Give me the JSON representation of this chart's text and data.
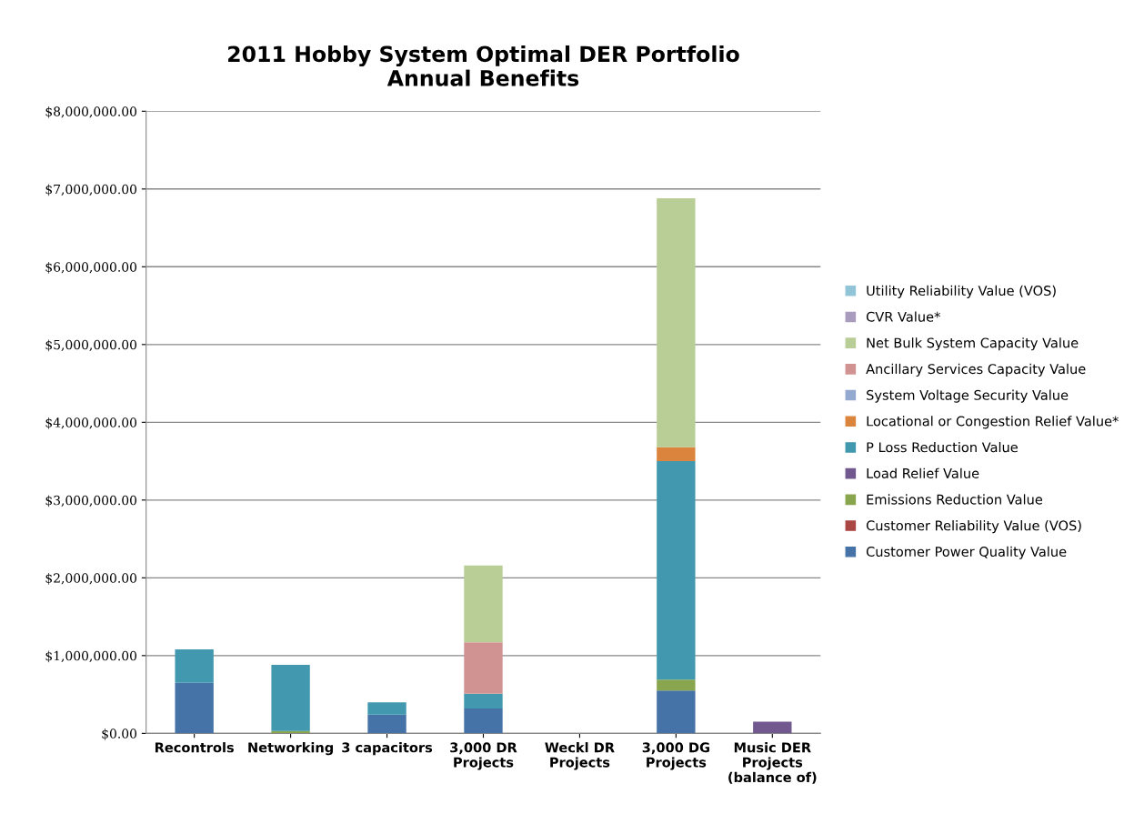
{
  "chart_data": {
    "type": "bar",
    "title": "2011 Hobby System Optimal DER Portfolio\nAnnual Benefits",
    "categories": [
      "Recontrols",
      "Networking",
      "3 capacitors",
      "3,000 DR\nProjects",
      "Weckl DR\nProjects",
      "3,000 DG\nProjects",
      "Music DER\nProjects\n(balance of)"
    ],
    "stacked": true,
    "series": [
      {
        "name": "Customer Power Quality Value",
        "color": "#4572a7",
        "values": [
          650000,
          0,
          240000,
          320000,
          0,
          550000,
          0
        ]
      },
      {
        "name": "Customer Reliability Value (VOS)",
        "color": "#aa4643",
        "values": [
          0,
          0,
          0,
          0,
          0,
          0,
          0
        ]
      },
      {
        "name": "Emissions Reduction Value",
        "color": "#89a54e",
        "values": [
          0,
          30000,
          0,
          0,
          0,
          140000,
          0
        ]
      },
      {
        "name": "Load Relief Value",
        "color": "#71588f",
        "values": [
          0,
          0,
          0,
          0,
          0,
          0,
          150000
        ]
      },
      {
        "name": "P Loss Reduction Value",
        "color": "#4198af",
        "values": [
          430000,
          850000,
          160000,
          190000,
          0,
          2810000,
          0
        ]
      },
      {
        "name": "Locational or Congestion Relief Value*",
        "color": "#db843d",
        "values": [
          0,
          0,
          0,
          0,
          0,
          180000,
          0
        ]
      },
      {
        "name": "System Voltage Security Value",
        "color": "#93a9cf",
        "values": [
          0,
          0,
          0,
          0,
          0,
          0,
          0
        ]
      },
      {
        "name": "Ancillary Services Capacity Value",
        "color": "#d19392",
        "values": [
          0,
          0,
          0,
          660000,
          0,
          0,
          0
        ]
      },
      {
        "name": "Net Bulk System Capacity Value",
        "color": "#b9cd96",
        "values": [
          0,
          0,
          0,
          990000,
          0,
          3200000,
          0
        ]
      },
      {
        "name": "CVR Value*",
        "color": "#a99bbd",
        "values": [
          0,
          0,
          0,
          0,
          0,
          0,
          0
        ]
      },
      {
        "name": "Utility Reliability Value (VOS)",
        "color": "#92c4d8",
        "values": [
          0,
          0,
          0,
          0,
          0,
          0,
          0
        ]
      }
    ],
    "ylim": [
      0,
      8000000
    ],
    "yticks": [
      {
        "value": 0,
        "label": "$0.00"
      },
      {
        "value": 1000000,
        "label": "$1,000,000.00"
      },
      {
        "value": 2000000,
        "label": "$2,000,000.00"
      },
      {
        "value": 3000000,
        "label": "$3,000,000.00"
      },
      {
        "value": 4000000,
        "label": "$4,000,000.00"
      },
      {
        "value": 5000000,
        "label": "$5,000,000.00"
      },
      {
        "value": 6000000,
        "label": "$6,000,000.00"
      },
      {
        "value": 7000000,
        "label": "$7,000,000.00"
      },
      {
        "value": 8000000,
        "label": "$8,000,000.00"
      }
    ],
    "grid": "y",
    "legend": "right"
  }
}
